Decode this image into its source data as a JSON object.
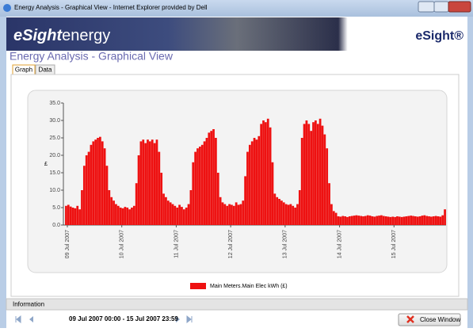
{
  "window": {
    "title": "Energy Analysis - Graphical View - Internet Explorer provided by Dell"
  },
  "header": {
    "logo_main": "eSight",
    "logo_sub": "energy",
    "brand": "eSight®",
    "page_title": "Energy Analysis - Graphical View"
  },
  "tabs": [
    "Graph",
    "Data"
  ],
  "chart_data": {
    "type": "bar",
    "y_label": "£",
    "categories": [
      "09 Jul 2007",
      null,
      null,
      null,
      null,
      null,
      null,
      null,
      null,
      null,
      null,
      null,
      null,
      null,
      null,
      null,
      null,
      null,
      null,
      null,
      null,
      null,
      null,
      null,
      "10 Jul 2007",
      null,
      null,
      null,
      null,
      null,
      null,
      null,
      null,
      null,
      null,
      null,
      null,
      null,
      null,
      null,
      null,
      null,
      null,
      null,
      null,
      null,
      null,
      null,
      "11 Jul 2007",
      null,
      null,
      null,
      null,
      null,
      null,
      null,
      null,
      null,
      null,
      null,
      null,
      null,
      null,
      null,
      null,
      null,
      null,
      null,
      null,
      null,
      null,
      null,
      "12 Jul 2007",
      null,
      null,
      null,
      null,
      null,
      null,
      null,
      null,
      null,
      null,
      null,
      null,
      null,
      null,
      null,
      null,
      null,
      null,
      null,
      null,
      null,
      null,
      null,
      "13 Jul 2007",
      null,
      null,
      null,
      null,
      null,
      null,
      null,
      null,
      null,
      null,
      null,
      null,
      null,
      null,
      null,
      null,
      null,
      null,
      null,
      null,
      null,
      null,
      null,
      "14 Jul 2007",
      null,
      null,
      null,
      null,
      null,
      null,
      null,
      null,
      null,
      null,
      null,
      null,
      null,
      null,
      null,
      null,
      null,
      null,
      null,
      null,
      null,
      null,
      null,
      "15 Jul 2007",
      null,
      null,
      null,
      null,
      null,
      null,
      null,
      null,
      null,
      null,
      null,
      null,
      null,
      null,
      null,
      null,
      null,
      null,
      null,
      null,
      null,
      null,
      null
    ],
    "series": [
      {
        "name": "Main Meters.Main Elec kWh (£)",
        "color": "#ee1111",
        "values": [
          5.5,
          5.8,
          5.3,
          5.0,
          4.8,
          5.5,
          4.5,
          10,
          17,
          20,
          21,
          23,
          24,
          24.5,
          25,
          25.3,
          24,
          22,
          17,
          10,
          8,
          7,
          6,
          5.5,
          5,
          4.8,
          5.2,
          5,
          4.5,
          5,
          5.5,
          12,
          20,
          24,
          24.5,
          23.5,
          24.5,
          24,
          24.5,
          23.5,
          24.5,
          21,
          15,
          9,
          8,
          7,
          6.5,
          6,
          5.5,
          5,
          5.8,
          5.2,
          4.5,
          5,
          6,
          10,
          18,
          21,
          22,
          22.5,
          23,
          24,
          25,
          26.5,
          27,
          27.5,
          25,
          15,
          8,
          6.5,
          6,
          5.5,
          6,
          5.8,
          5.5,
          6.5,
          5.8,
          6,
          7,
          14,
          21,
          23,
          24,
          25,
          24.5,
          25.5,
          29,
          30,
          29.5,
          30.5,
          28,
          18,
          9,
          8,
          7.5,
          7,
          6.5,
          6,
          5.8,
          6,
          5.5,
          5,
          6,
          10,
          25,
          29,
          30,
          29,
          27,
          29.5,
          30,
          29,
          30.5,
          28.5,
          26,
          22,
          12,
          6,
          4,
          3.5,
          2.5,
          2.4,
          2.6,
          2.5,
          2.3,
          2.5,
          2.6,
          2.7,
          2.8,
          2.7,
          2.6,
          2.5,
          2.6,
          2.8,
          2.7,
          2.5,
          2.4,
          2.6,
          2.7,
          2.8,
          2.6,
          2.5,
          2.4,
          2.3,
          2.4,
          2.3,
          2.5,
          2.4,
          2.3,
          2.4,
          2.5,
          2.6,
          2.7,
          2.6,
          2.5,
          2.4,
          2.5,
          2.7,
          2.8,
          2.6,
          2.5,
          2.4,
          2.5,
          2.6,
          2.5,
          2.4,
          2.8,
          4.5
        ]
      }
    ],
    "ylim": [
      0,
      35
    ],
    "yticks": [
      {
        "value": 0,
        "label": "0.0"
      },
      {
        "value": 5,
        "label": "5.0"
      },
      {
        "value": 10,
        "label": "10.0"
      },
      {
        "value": 15,
        "label": "15.0"
      },
      {
        "value": 20,
        "label": "20.0"
      },
      {
        "value": 25,
        "label": "25.0"
      },
      {
        "value": 30,
        "label": "30.0"
      },
      {
        "value": 35,
        "label": "35.0"
      }
    ],
    "grid": false,
    "legend": "bottom"
  },
  "footer": {
    "info_title": "Information",
    "range": "09 Jul 2007 00:00 - 15 Jul 2007 23:59",
    "close": "Close Window"
  }
}
